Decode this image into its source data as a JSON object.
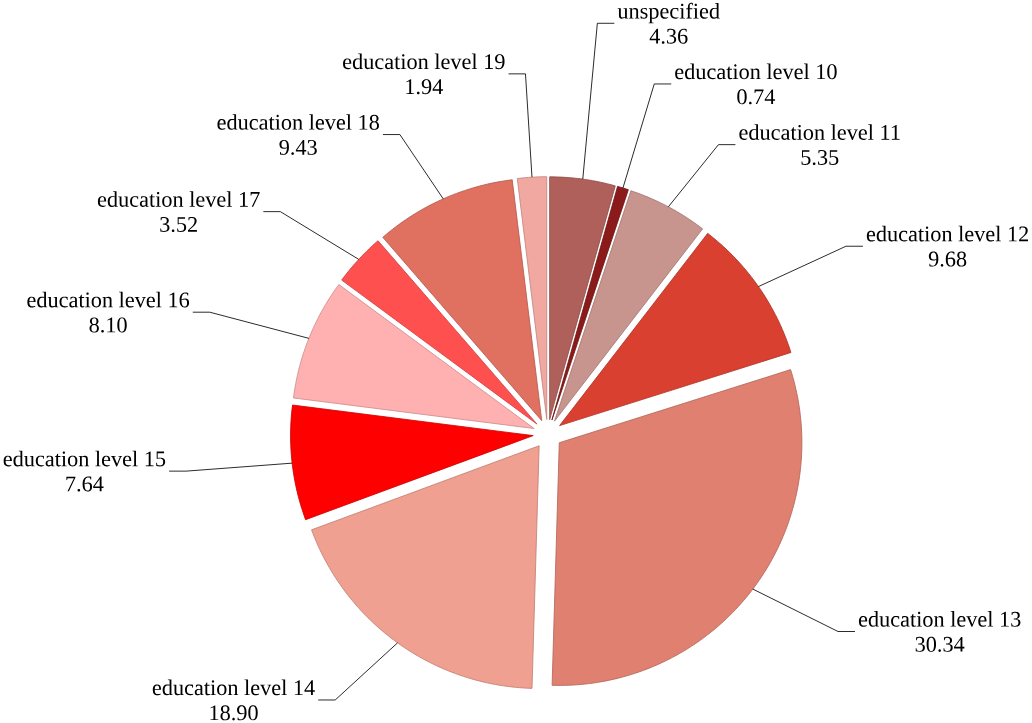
{
  "chart_data": {
    "type": "pie",
    "categories": [
      "unspecified",
      "education level 10",
      "education level 11",
      "education level 12",
      "education level 13",
      "education level 14",
      "education level 15",
      "education level 16",
      "education level 17",
      "education level 18",
      "education level 19"
    ],
    "values": [
      4.36,
      0.74,
      5.35,
      9.68,
      30.34,
      18.9,
      7.64,
      8.1,
      3.52,
      9.43,
      1.94
    ],
    "colors": [
      "#b0605a",
      "#8b1a1a",
      "#c8948e",
      "#d94030",
      "#e08070",
      "#f0a090",
      "#ff0000",
      "#ffb0b0",
      "#ff5050",
      "#e07060",
      "#f0a8a0"
    ],
    "value_labels": [
      "4.36",
      "0.74",
      "5.35",
      "9.68",
      "30.34",
      "18.90",
      "7.64",
      "8.10",
      "3.52",
      "9.43",
      "1.94"
    ]
  }
}
